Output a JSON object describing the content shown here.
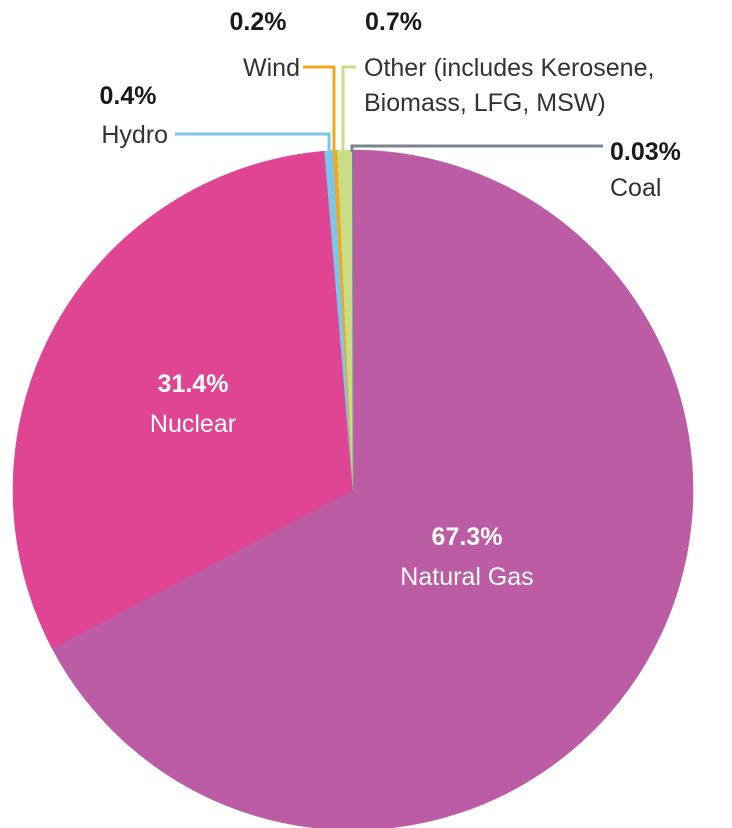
{
  "chart_data": {
    "type": "pie",
    "start_angle_deg": 0,
    "direction": "clockwise",
    "slices": [
      {
        "label": "Natural Gas",
        "percent_text": "67.3%",
        "value": 67.3,
        "color": "#bb5ca5",
        "text_color": "#ffffff",
        "label_position": "inside"
      },
      {
        "label": "Nuclear",
        "percent_text": "31.4%",
        "value": 31.4,
        "color": "#e04594",
        "text_color": "#ffffff",
        "label_position": "inside"
      },
      {
        "label": "Hydro",
        "percent_text": "0.4%",
        "value": 0.4,
        "color": "#7cc6e8",
        "text_color": "#1a1a1a",
        "label_position": "outside"
      },
      {
        "label": "Wind",
        "percent_text": "0.2%",
        "value": 0.2,
        "color": "#f0a81c",
        "text_color": "#1a1a1a",
        "label_position": "outside"
      },
      {
        "label": "Other (includes Kerosene, Biomass, LFG, MSW)",
        "label_lines": [
          "Other (includes Kerosene,",
          "Biomass, LFG, MSW)"
        ],
        "percent_text": "0.7%",
        "value": 0.7,
        "color": "#c9dc86",
        "text_color": "#1a1a1a",
        "label_position": "outside"
      },
      {
        "label": "Coal",
        "percent_text": "0.03%",
        "value": 0.03,
        "color": "#7a8591",
        "text_color": "#1a1a1a",
        "label_position": "outside"
      }
    ]
  }
}
